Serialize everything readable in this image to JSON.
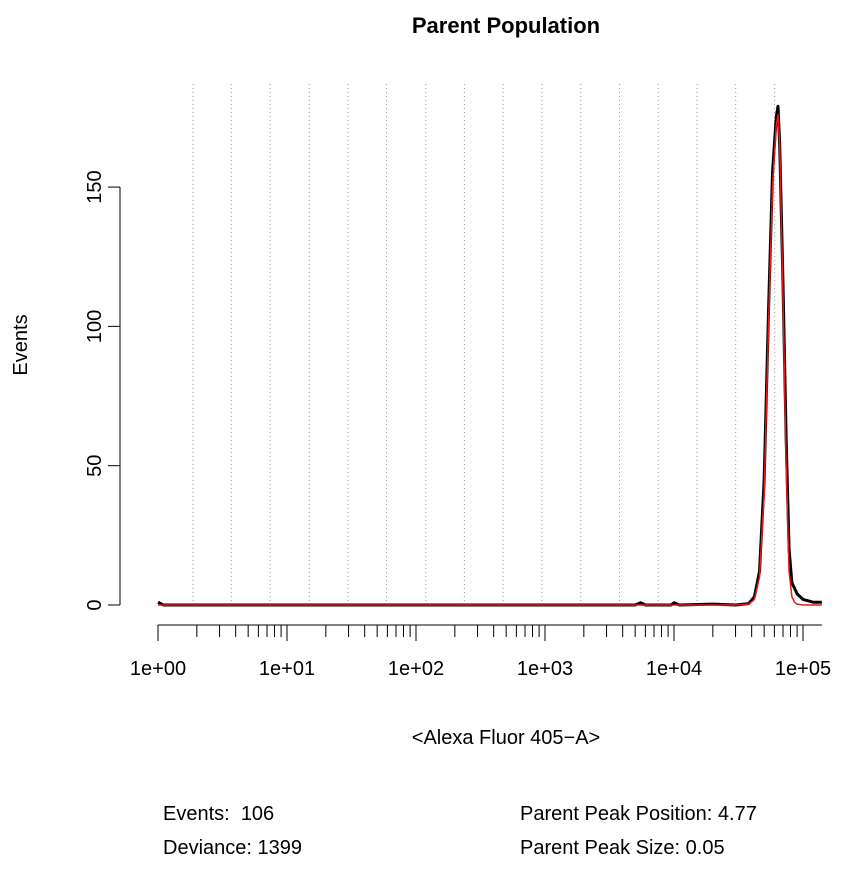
{
  "chart_data": {
    "type": "line",
    "title": "Parent Population",
    "x_label": "<Alexa Fluor 405−A>",
    "y_label": "Events",
    "log_x": true,
    "grid": "x-dotted",
    "x": [
      1,
      1.1,
      100,
      5000,
      5500,
      6000,
      9500,
      10000,
      11000,
      20000,
      30000,
      38000,
      42000,
      46000,
      50000,
      54000,
      58000,
      62000,
      64000,
      66000,
      70000,
      74000,
      78000,
      82000,
      86000,
      90000,
      100000,
      120000,
      140000
    ],
    "series": [
      {
        "color": "#000000",
        "values": [
          1,
          0,
          0,
          0,
          0.8,
          0,
          0,
          0.8,
          0,
          0.3,
          0,
          0.5,
          3,
          12,
          45,
          105,
          155,
          175,
          179,
          165,
          115,
          60,
          20,
          8,
          6,
          4,
          2,
          1,
          1
        ]
      },
      {
        "color": "#e41a1c",
        "values": [
          0,
          0,
          0,
          0,
          0,
          0,
          0,
          0,
          0,
          0,
          0,
          0.3,
          2,
          10,
          40,
          100,
          150,
          172,
          176,
          165,
          110,
          50,
          12,
          3,
          1,
          0.3,
          0,
          0,
          0
        ]
      }
    ],
    "xlim": [
      1,
      140000
    ],
    "ylim": [
      0,
      187
    ],
    "xticks": [
      {
        "value": 1,
        "label": "1e+00"
      },
      {
        "value": 10,
        "label": "1e+01"
      },
      {
        "value": 100,
        "label": "1e+02"
      },
      {
        "value": 1000,
        "label": "1e+03"
      },
      {
        "value": 10000,
        "label": "1e+04"
      },
      {
        "value": 100000,
        "label": "1e+05"
      }
    ],
    "xminor_ticks": [
      2,
      3,
      4,
      5,
      6,
      7,
      8,
      9,
      20,
      30,
      40,
      50,
      60,
      70,
      80,
      90,
      200,
      300,
      400,
      500,
      600,
      700,
      800,
      900,
      2000,
      3000,
      4000,
      5000,
      6000,
      7000,
      8000,
      9000,
      20000,
      30000,
      40000,
      50000,
      60000,
      70000,
      80000,
      90000
    ],
    "xgrid": [
      1.87,
      3.7,
      7.4,
      14.9,
      29.7,
      59,
      119,
      237,
      474,
      947,
      1890,
      3780,
      7550,
      15100,
      30100,
      60200
    ],
    "yticks": [
      0,
      50,
      100,
      150
    ],
    "annotations": [
      "Events:  106",
      "Deviance: 1399",
      "Parent Peak Position: 4.77",
      "Parent Peak Size: 0.05"
    ]
  }
}
